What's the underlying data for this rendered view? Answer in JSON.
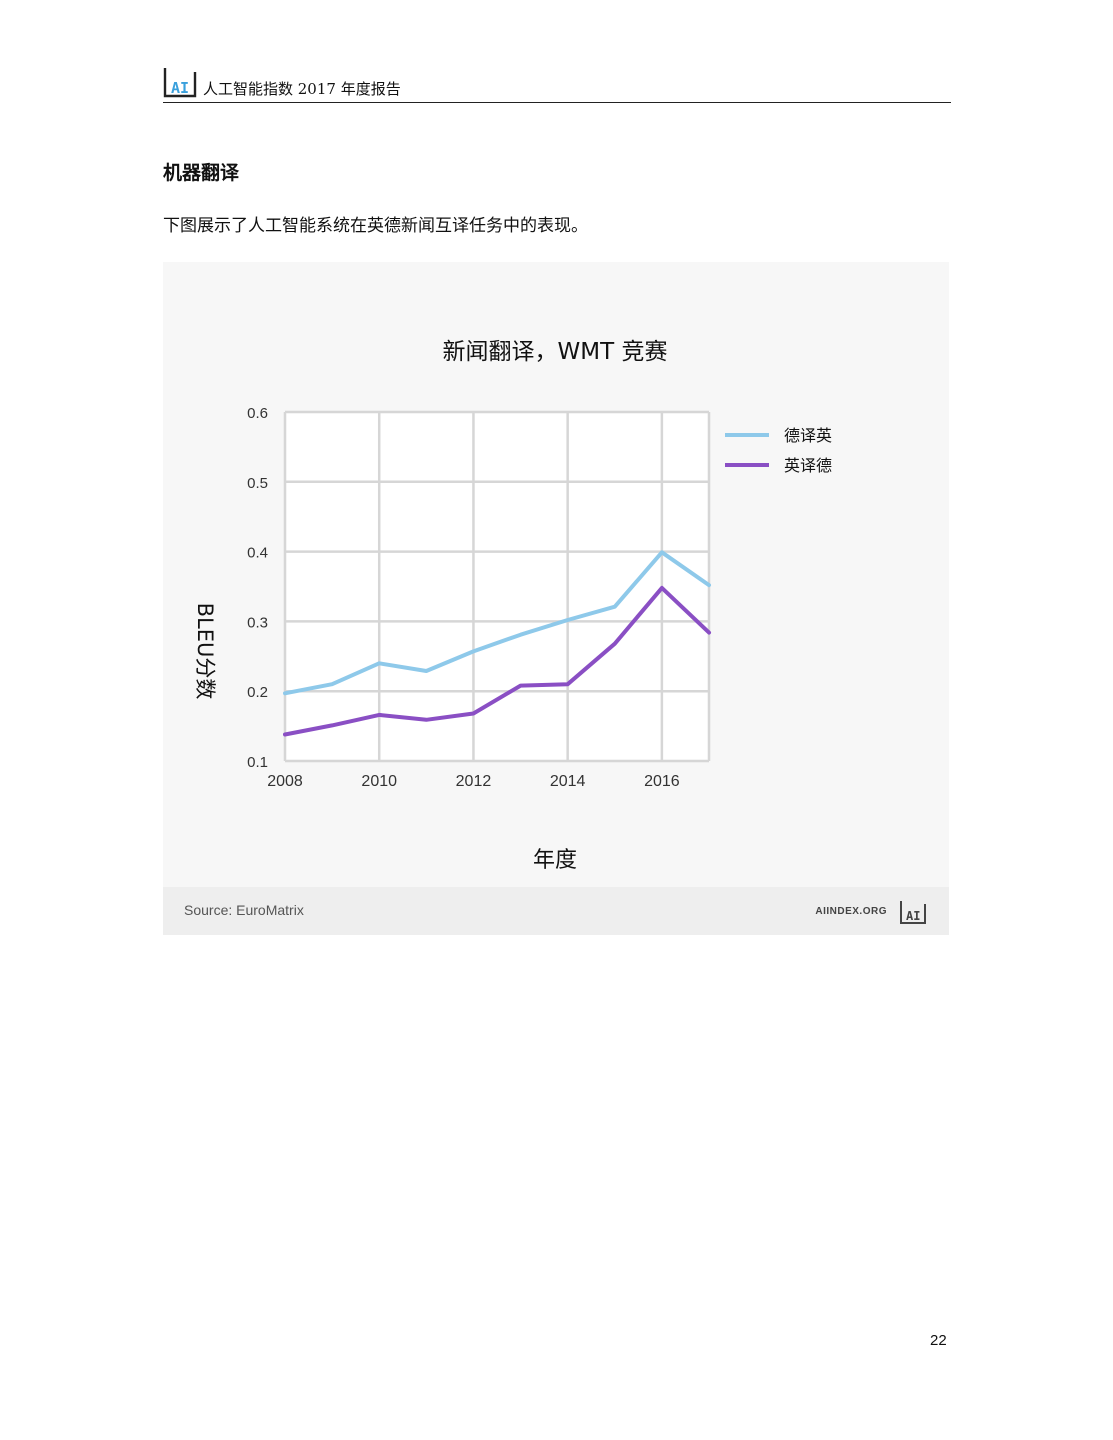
{
  "header": {
    "logo_text": "AI",
    "title": "人工智能指数 2017 年度报告"
  },
  "section": {
    "title": "机器翻译",
    "intro": "下图展示了人工智能系统在英德新闻互译任务中的表现。"
  },
  "figure": {
    "source": "Source: EuroMatrix",
    "site": "AIINDEX.ORG",
    "logo_text": "AI"
  },
  "chart_data": {
    "type": "line",
    "title": "新闻翻译，WMT 竞赛",
    "xlabel": "年度",
    "ylabel": "BLEU分数",
    "x": [
      2008,
      2009,
      2010,
      2011,
      2012,
      2013,
      2014,
      2015,
      2016,
      2017
    ],
    "xlim": [
      2008,
      2017
    ],
    "ylim": [
      0.1,
      0.6
    ],
    "xticks": [
      2008,
      2010,
      2012,
      2014,
      2016
    ],
    "xtick_labels": [
      "2008",
      "2010",
      "2012",
      "2014",
      "2016"
    ],
    "yticks": [
      0.1,
      0.2,
      0.3,
      0.4,
      0.5,
      0.6
    ],
    "ytick_labels": [
      "0.1",
      "0.2",
      "0.3",
      "0.4",
      "0.5",
      "0.6"
    ],
    "grid": true,
    "legend_position": "right",
    "series": [
      {
        "name": "德译英",
        "color": "#8ec9ea",
        "values": [
          0.197,
          0.21,
          0.24,
          0.229,
          0.257,
          0.281,
          0.302,
          0.321,
          0.399,
          0.352
        ]
      },
      {
        "name": "英译德",
        "color": "#8a4fc4",
        "values": [
          0.138,
          0.151,
          0.166,
          0.159,
          0.168,
          0.208,
          0.21,
          0.268,
          0.348,
          0.284
        ]
      }
    ]
  },
  "page": {
    "number": "22"
  }
}
